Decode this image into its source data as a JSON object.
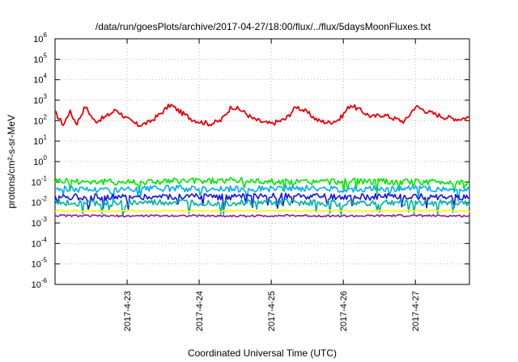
{
  "chart_data": {
    "type": "line",
    "title": "/data/run/goesPlots/archive/2017-04-27/18:00/flux/../flux/5daysMoonFluxes.txt",
    "xlabel": "Coordinated Universal Time (UTC)",
    "ylabel": "protons/cm²-s-sr-MeV",
    "yscale": "log",
    "ylim": [
      1e-06,
      1000000.0
    ],
    "xlim": [
      "2017-04-22 00:00",
      "2017-04-27 18:00"
    ],
    "grid": true,
    "xticks": [
      "2017-4-23",
      "2017-4-24",
      "2017-4-25",
      "2017-4-26",
      "2017-4-27"
    ],
    "yticks": [
      {
        "base": "10",
        "exp": "-6"
      },
      {
        "base": "10",
        "exp": "-5"
      },
      {
        "base": "10",
        "exp": "-4"
      },
      {
        "base": "10",
        "exp": "-3"
      },
      {
        "base": "10",
        "exp": "-2"
      },
      {
        "base": "10",
        "exp": "-1"
      },
      {
        "base": "10",
        "exp": "0"
      },
      {
        "base": "10",
        "exp": "1"
      },
      {
        "base": "10",
        "exp": "2"
      },
      {
        "base": "10",
        "exp": "3"
      },
      {
        "base": "10",
        "exp": "4"
      },
      {
        "base": "10",
        "exp": "5"
      },
      {
        "base": "10",
        "exp": "6"
      }
    ],
    "series": [
      {
        "color": "#e8000b",
        "x_days": [
          0.0,
          0.12,
          0.2,
          0.3,
          0.42,
          0.55,
          0.7,
          0.85,
          1.0,
          1.15,
          1.3,
          1.45,
          1.6,
          1.75,
          1.9,
          2.0,
          2.15,
          2.3,
          2.45,
          2.6,
          2.75,
          2.9,
          3.0,
          3.2,
          3.35,
          3.5,
          3.65,
          3.8,
          3.95,
          4.1,
          4.25,
          4.4,
          4.55,
          4.7,
          4.85,
          5.0,
          5.2,
          5.4,
          5.6,
          5.75
        ],
        "values": [
          250,
          60,
          300,
          70,
          500,
          90,
          150,
          350,
          120,
          60,
          80,
          200,
          600,
          250,
          120,
          90,
          70,
          100,
          500,
          300,
          120,
          80,
          70,
          120,
          500,
          250,
          100,
          80,
          120,
          600,
          300,
          150,
          200,
          130,
          90,
          500,
          250,
          150,
          120,
          150
        ]
      },
      {
        "color": "#00e600",
        "values": [
          0.12,
          0.1,
          0.11,
          0.12,
          0.1,
          0.11,
          0.1,
          0.1
        ]
      },
      {
        "color": "#00aaff",
        "values": [
          0.05,
          0.04,
          0.05,
          0.045,
          0.05,
          0.045,
          0.05,
          0.04
        ]
      },
      {
        "color": "#1414e6",
        "values": [
          0.02,
          0.018,
          0.02,
          0.019,
          0.02,
          0.018,
          0.02,
          0.019
        ]
      },
      {
        "color": "#00b3a0",
        "values": [
          0.01,
          0.009,
          0.01,
          0.0095,
          0.01,
          0.009,
          0.01,
          0.0095
        ]
      },
      {
        "color": "#ffff00",
        "values": [
          0.004,
          0.0038,
          0.004,
          0.0039,
          0.004,
          0.0038,
          0.004,
          0.0039
        ]
      },
      {
        "color": "#8c1e8c",
        "values": [
          0.0023,
          0.0022,
          0.0023,
          0.0022,
          0.0023,
          0.0022,
          0.0023,
          0.0022
        ]
      }
    ]
  }
}
